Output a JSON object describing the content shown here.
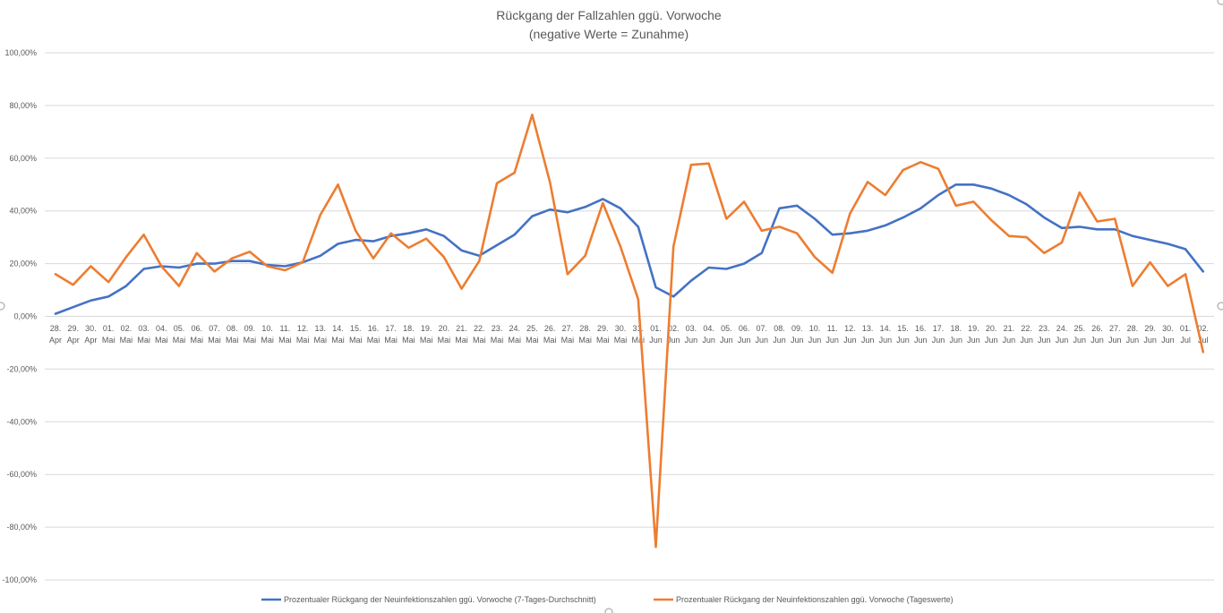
{
  "chart_data": {
    "type": "line",
    "title": "Rückgang der Fallzahlen ggü. Vorwoche",
    "subtitle": "(negative Werte = Zunahme)",
    "ylim": [
      -100,
      100
    ],
    "y_ticks": [
      "100,00%",
      "80,00%",
      "60,00%",
      "40,00%",
      "20,00%",
      "0,00%",
      "-20,00%",
      "-40,00%",
      "-60,00%",
      "-80,00%",
      "-100,00%"
    ],
    "grid": true,
    "legend_position": "bottom",
    "categories": [
      [
        "28.",
        "Apr"
      ],
      [
        "29.",
        "Apr"
      ],
      [
        "30.",
        "Apr"
      ],
      [
        "01.",
        "Mai"
      ],
      [
        "02.",
        "Mai"
      ],
      [
        "03.",
        "Mai"
      ],
      [
        "04.",
        "Mai"
      ],
      [
        "05.",
        "Mai"
      ],
      [
        "06.",
        "Mai"
      ],
      [
        "07.",
        "Mai"
      ],
      [
        "08.",
        "Mai"
      ],
      [
        "09.",
        "Mai"
      ],
      [
        "10.",
        "Mai"
      ],
      [
        "11.",
        "Mai"
      ],
      [
        "12.",
        "Mai"
      ],
      [
        "13.",
        "Mai"
      ],
      [
        "14.",
        "Mai"
      ],
      [
        "15.",
        "Mai"
      ],
      [
        "16.",
        "Mai"
      ],
      [
        "17.",
        "Mai"
      ],
      [
        "18.",
        "Mai"
      ],
      [
        "19.",
        "Mai"
      ],
      [
        "20.",
        "Mai"
      ],
      [
        "21.",
        "Mai"
      ],
      [
        "22.",
        "Mai"
      ],
      [
        "23.",
        "Mai"
      ],
      [
        "24.",
        "Mai"
      ],
      [
        "25.",
        "Mai"
      ],
      [
        "26.",
        "Mai"
      ],
      [
        "27.",
        "Mai"
      ],
      [
        "28.",
        "Mai"
      ],
      [
        "29.",
        "Mai"
      ],
      [
        "30.",
        "Mai"
      ],
      [
        "31.",
        "Mai"
      ],
      [
        "01.",
        "Jun"
      ],
      [
        "02.",
        "Jun"
      ],
      [
        "03.",
        "Jun"
      ],
      [
        "04.",
        "Jun"
      ],
      [
        "05.",
        "Jun"
      ],
      [
        "06.",
        "Jun"
      ],
      [
        "07.",
        "Jun"
      ],
      [
        "08.",
        "Jun"
      ],
      [
        "09.",
        "Jun"
      ],
      [
        "10.",
        "Jun"
      ],
      [
        "11.",
        "Jun"
      ],
      [
        "12.",
        "Jun"
      ],
      [
        "13.",
        "Jun"
      ],
      [
        "14.",
        "Jun"
      ],
      [
        "15.",
        "Jun"
      ],
      [
        "16.",
        "Jun"
      ],
      [
        "17.",
        "Jun"
      ],
      [
        "18.",
        "Jun"
      ],
      [
        "19.",
        "Jun"
      ],
      [
        "20.",
        "Jun"
      ],
      [
        "21.",
        "Jun"
      ],
      [
        "22.",
        "Jun"
      ],
      [
        "23.",
        "Jun"
      ],
      [
        "24.",
        "Jun"
      ],
      [
        "25.",
        "Jun"
      ],
      [
        "26.",
        "Jun"
      ],
      [
        "27.",
        "Jun"
      ],
      [
        "28.",
        "Jun"
      ],
      [
        "29.",
        "Jun"
      ],
      [
        "30.",
        "Jun"
      ],
      [
        "01.",
        "Jul"
      ],
      [
        "02.",
        "Jul"
      ]
    ],
    "series": [
      {
        "name": "Prozentualer Rückgang der Neuinfektionszahlen ggü. Vorwoche (7-Tages-Durchschnitt)",
        "color": "#4472C4",
        "values": [
          1,
          3.5,
          6,
          7.5,
          11.5,
          18,
          19,
          18.5,
          20,
          20,
          21,
          21,
          19.5,
          19,
          20.5,
          23,
          27.5,
          29,
          28.5,
          30.5,
          31.5,
          33,
          30.5,
          25,
          23,
          27,
          31,
          38,
          40.5,
          39.5,
          41.5,
          44.5,
          41,
          34,
          11,
          7.5,
          13.5,
          18.5,
          18,
          20,
          24,
          41,
          42,
          37,
          31,
          31.5,
          32.5,
          34.5,
          37.5,
          41,
          46,
          50,
          50,
          48.5,
          46,
          42.5,
          37.5,
          33.5,
          34,
          33,
          33,
          30.5,
          29,
          27.5,
          25.5,
          17
        ]
      },
      {
        "name": "Prozentualer Rückgang der Neuinfektionszahlen ggü. Vorwoche (Tageswerte)",
        "color": "#ED7D31",
        "values": [
          16,
          12,
          19,
          13,
          22.5,
          31,
          19,
          11.5,
          24,
          17,
          22,
          24.5,
          19,
          17.5,
          20.5,
          38.5,
          50,
          32.5,
          22,
          31.5,
          26,
          29.5,
          22.5,
          10.5,
          21,
          50.5,
          54.5,
          76.5,
          51,
          16,
          23,
          43,
          26.5,
          6.5,
          -87.5,
          26.5,
          57.5,
          58,
          37,
          43.5,
          32.5,
          34,
          31.5,
          22.5,
          16.5,
          39,
          51,
          46,
          55.5,
          58.5,
          56,
          42,
          43.5,
          36.5,
          30.5,
          30,
          24,
          28,
          47,
          36,
          37,
          11.5,
          20.5,
          11.5,
          16,
          -13.5
        ]
      }
    ]
  }
}
